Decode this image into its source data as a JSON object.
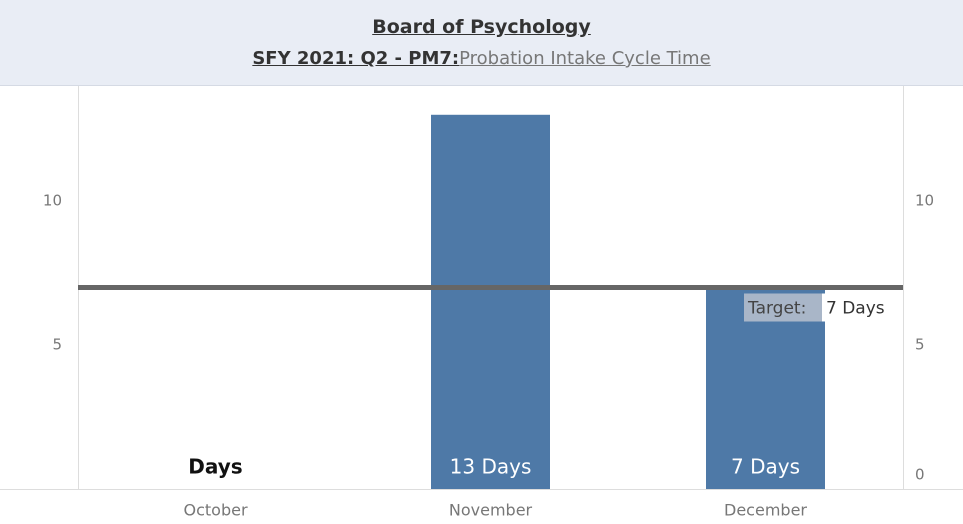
{
  "chart_data": {
    "type": "bar",
    "title": "Board of Psychology",
    "subtitle": "SFY 2021: Q2 -  PM7:",
    "subtitle_measure": "Probation Intake Cycle Time",
    "categories": [
      "October",
      "November",
      "December"
    ],
    "values": [
      null,
      13,
      7
    ],
    "value_labels": [
      "Days",
      "13 Days",
      "7 Days"
    ],
    "color": "#4e79a7",
    "ylim": [
      0,
      14
    ],
    "yticks": [
      5,
      10
    ],
    "y2lim": [
      0,
      14
    ],
    "y2ticks": [
      0,
      5,
      10
    ],
    "target": {
      "value": 7,
      "label": "Target:",
      "value_label": "7 Days"
    }
  }
}
